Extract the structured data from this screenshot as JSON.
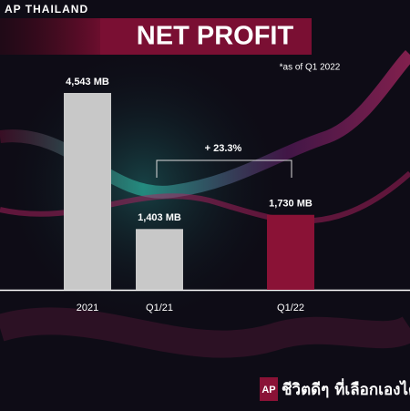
{
  "brand": "AP THAILAND",
  "footer": {
    "logo": "AP",
    "slogan": "ชีวิตดีๆ ที่เลือกเองได้"
  },
  "chart_data": {
    "type": "bar",
    "title": "NET PROFIT",
    "subtitle": "*as of Q1 2022",
    "categories": [
      "2021",
      "Q1/21",
      "Q1/22"
    ],
    "values": [
      4543,
      1403,
      1730
    ],
    "value_labels": [
      "4,543 MB",
      "1,403 MB",
      "1,730 MB"
    ],
    "colors": [
      "#c8c8c8",
      "#c8c8c8",
      "#8a1236"
    ],
    "annotation": "+ 23.3%"
  }
}
